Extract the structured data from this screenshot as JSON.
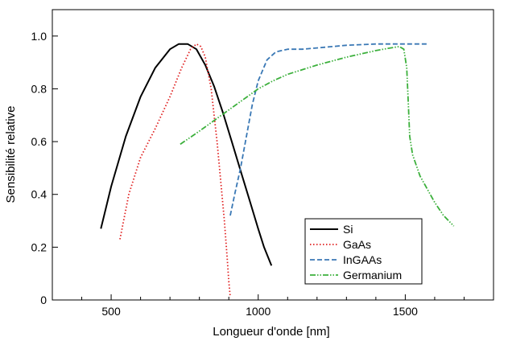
{
  "chart_data": {
    "type": "line",
    "title": "",
    "xlabel": "Longueur d'onde [nm]",
    "ylabel": "Sensibilité relative",
    "xlim": [
      300,
      1800
    ],
    "ylim": [
      0,
      1.1
    ],
    "x_ticks": [
      500,
      1000,
      1500
    ],
    "x_minor_ticks": [
      400,
      600,
      700,
      800,
      900,
      1100,
      1200,
      1300,
      1400,
      1600,
      1700
    ],
    "y_ticks": [
      0,
      0.2,
      0.4,
      0.6,
      0.8,
      1.0
    ],
    "y_tick_labels": [
      "0",
      "0.2",
      "0.4",
      "0.6",
      "0.8",
      "1.0"
    ],
    "grid": false,
    "legend_position": "bottom-right",
    "series": [
      {
        "name": "Si",
        "color": "#000000",
        "style": "solid",
        "x": [
          465,
          500,
          550,
          600,
          650,
          700,
          730,
          760,
          790,
          820,
          850,
          880,
          910,
          940,
          970,
          1000,
          1020,
          1045
        ],
        "y": [
          0.27,
          0.43,
          0.62,
          0.77,
          0.88,
          0.95,
          0.97,
          0.97,
          0.95,
          0.89,
          0.81,
          0.71,
          0.6,
          0.49,
          0.38,
          0.27,
          0.2,
          0.13
        ]
      },
      {
        "name": "GaAs",
        "color": "#e02020",
        "style": "dotted",
        "x": [
          530,
          560,
          600,
          650,
          700,
          740,
          770,
          790,
          805,
          820,
          840,
          860,
          875,
          885,
          895,
          900,
          905
        ],
        "y": [
          0.23,
          0.4,
          0.54,
          0.65,
          0.77,
          0.88,
          0.95,
          0.97,
          0.96,
          0.92,
          0.8,
          0.6,
          0.42,
          0.3,
          0.15,
          0.07,
          0.01
        ]
      },
      {
        "name": "InGAAs",
        "color": "#3a78b5",
        "style": "dashed",
        "x": [
          905,
          920,
          940,
          960,
          980,
          1000,
          1030,
          1060,
          1100,
          1150,
          1200,
          1300,
          1400,
          1500,
          1580
        ],
        "y": [
          0.32,
          0.4,
          0.5,
          0.62,
          0.74,
          0.83,
          0.91,
          0.94,
          0.95,
          0.95,
          0.955,
          0.965,
          0.97,
          0.97,
          0.97
        ]
      },
      {
        "name": "Germanium",
        "color": "#3cb03c",
        "style": "dashdotdot",
        "x": [
          735,
          800,
          900,
          1000,
          1050,
          1100,
          1200,
          1300,
          1400,
          1450,
          1480,
          1495,
          1505,
          1510,
          1515,
          1525,
          1550,
          1600,
          1630,
          1665
        ],
        "y": [
          0.59,
          0.64,
          0.72,
          0.8,
          0.83,
          0.855,
          0.89,
          0.92,
          0.945,
          0.955,
          0.96,
          0.95,
          0.88,
          0.75,
          0.62,
          0.55,
          0.47,
          0.37,
          0.32,
          0.28
        ]
      }
    ]
  }
}
